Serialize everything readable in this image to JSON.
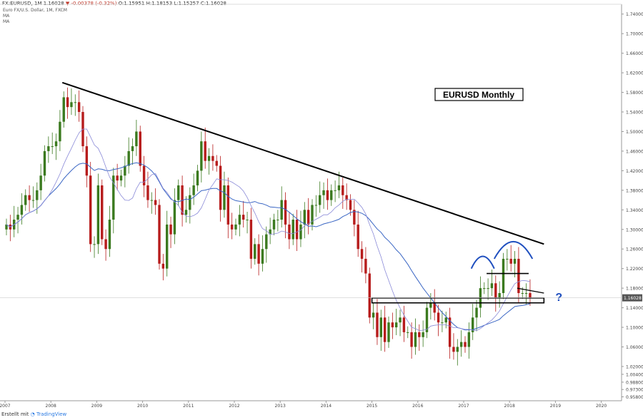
{
  "header": {
    "symbol": "FX:EURUSD, 1M 1.16028",
    "change": "▼ -0.00378 (-0.32%)",
    "ohlc": "O:1.15951 H:1.18153 L:1.15257 C:1.16028",
    "instrument": "Euro FX/U.S. Dollar, 1M, FXCM",
    "ma1": "MA",
    "ma2": "MA"
  },
  "footer": {
    "made_with": "Erstellt mit",
    "brand": "TradingView"
  },
  "colors": {
    "up": "#3b7a1f",
    "down": "#b71c1c",
    "ma_slow": "#3a66c4",
    "ma_fast": "#8a8ad8",
    "trend": "#000000",
    "pattern": "#1f4fbf",
    "price_line": "#cccccc"
  },
  "chart_data": {
    "type": "candlestick",
    "title": "EURUSD Monthly",
    "x_ticks": [
      "2007",
      "2008",
      "2009",
      "2010",
      "2011",
      "2012",
      "2013",
      "2014",
      "2015",
      "2016",
      "2017",
      "2018",
      "2019",
      "2020"
    ],
    "y_ticks": [
      "1.74000",
      "1.70000",
      "1.66000",
      "1.62000",
      "1.58000",
      "1.54000",
      "1.50000",
      "1.46000",
      "1.42000",
      "1.38000",
      "1.34000",
      "1.30000",
      "1.26000",
      "1.22000",
      "1.18000",
      "1.14000",
      "1.10000",
      "1.06000",
      "1.02000",
      "1.00400",
      "0.98800",
      "0.97300",
      "0.95800"
    ],
    "ylim": [
      0.95,
      1.76
    ],
    "last_price_label": "1.16028",
    "annotation_question": "?",
    "series": [
      {
        "name": "Price",
        "values": [
          1.31,
          1.3,
          1.32,
          1.33,
          1.35,
          1.37,
          1.36,
          1.36,
          1.38,
          1.41,
          1.46,
          1.47,
          1.47,
          1.48,
          1.52,
          1.57,
          1.55,
          1.56,
          1.56,
          1.54,
          1.47,
          1.41,
          1.27,
          1.27,
          1.39,
          1.28,
          1.26,
          1.32,
          1.41,
          1.4,
          1.41,
          1.43,
          1.46,
          1.47,
          1.5,
          1.43,
          1.39,
          1.36,
          1.36,
          1.35,
          1.23,
          1.22,
          1.31,
          1.29,
          1.36,
          1.39,
          1.33,
          1.34,
          1.37,
          1.39,
          1.42,
          1.48,
          1.44,
          1.45,
          1.44,
          1.43,
          1.34,
          1.39,
          1.31,
          1.3,
          1.31,
          1.33,
          1.32,
          1.32,
          1.24,
          1.27,
          1.23,
          1.26,
          1.29,
          1.3,
          1.32,
          1.32,
          1.36,
          1.31,
          1.28,
          1.32,
          1.28,
          1.31,
          1.34,
          1.31,
          1.35,
          1.35,
          1.37,
          1.38,
          1.36,
          1.38,
          1.38,
          1.39,
          1.37,
          1.36,
          1.34,
          1.31,
          1.26,
          1.24,
          1.21,
          1.12,
          1.13,
          1.08,
          1.12,
          1.07,
          1.11,
          1.1,
          1.11,
          1.12,
          1.09,
          1.09,
          1.06,
          1.09,
          1.08,
          1.09,
          1.14,
          1.15,
          1.13,
          1.11,
          1.11,
          1.12,
          1.06,
          1.05,
          1.06,
          1.07,
          1.06,
          1.09,
          1.12,
          1.14,
          1.18,
          1.18,
          1.18,
          1.19,
          1.16,
          1.17,
          1.24,
          1.24,
          1.23,
          1.24,
          1.17,
          1.17,
          1.17,
          1.16
        ]
      }
    ]
  }
}
